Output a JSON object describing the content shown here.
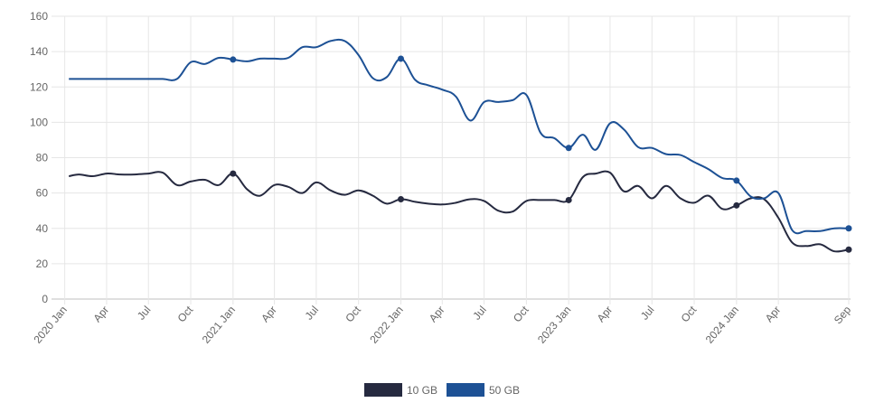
{
  "chart_data": {
    "type": "line",
    "title": "",
    "xlabel": "",
    "ylabel": "",
    "ylim": [
      0,
      160
    ],
    "yticks": [
      0,
      20,
      40,
      60,
      80,
      100,
      120,
      140,
      160
    ],
    "xlim": [
      "2019-12-15",
      "2024-09-05"
    ],
    "grid": true,
    "legend_position": "bottom",
    "x_ticks": [
      {
        "date": "2020-01-01",
        "label": "2020 Jan"
      },
      {
        "date": "2020-04-01",
        "label": "Apr"
      },
      {
        "date": "2020-07-01",
        "label": "Jul"
      },
      {
        "date": "2020-10-01",
        "label": "Oct"
      },
      {
        "date": "2021-01-01",
        "label": "2021 Jan"
      },
      {
        "date": "2021-04-01",
        "label": "Apr"
      },
      {
        "date": "2021-07-01",
        "label": "Jul"
      },
      {
        "date": "2021-10-01",
        "label": "Oct"
      },
      {
        "date": "2022-01-01",
        "label": "2022 Jan"
      },
      {
        "date": "2022-04-01",
        "label": "Apr"
      },
      {
        "date": "2022-07-01",
        "label": "Jul"
      },
      {
        "date": "2022-10-01",
        "label": "Oct"
      },
      {
        "date": "2023-01-01",
        "label": "2023 Jan"
      },
      {
        "date": "2023-04-01",
        "label": "Apr"
      },
      {
        "date": "2023-07-01",
        "label": "Jul"
      },
      {
        "date": "2023-10-01",
        "label": "Oct"
      },
      {
        "date": "2024-01-01",
        "label": "2024 Jan"
      },
      {
        "date": "2024-04-01",
        "label": "Apr"
      },
      {
        "date": "2024-09-01",
        "label": "Sep"
      }
    ],
    "series": [
      {
        "name": "10 GB",
        "color": "#262a40",
        "points": [
          [
            "2020-01-10",
            69.5
          ],
          [
            "2020-02-01",
            70.5
          ],
          [
            "2020-03-01",
            69.5
          ],
          [
            "2020-04-01",
            71
          ],
          [
            "2020-05-01",
            70.5
          ],
          [
            "2020-06-01",
            70.5
          ],
          [
            "2020-07-01",
            71
          ],
          [
            "2020-08-01",
            71.5
          ],
          [
            "2020-09-01",
            64.5
          ],
          [
            "2020-10-01",
            66.5
          ],
          [
            "2020-11-01",
            67.5
          ],
          [
            "2020-12-01",
            64.5
          ],
          [
            "2021-01-01",
            71
          ],
          [
            "2021-02-01",
            62
          ],
          [
            "2021-03-01",
            58.5
          ],
          [
            "2021-04-01",
            64.5
          ],
          [
            "2021-05-01",
            63.5
          ],
          [
            "2021-06-01",
            60
          ],
          [
            "2021-07-01",
            66
          ],
          [
            "2021-08-01",
            61.5
          ],
          [
            "2021-09-01",
            59
          ],
          [
            "2021-10-01",
            61.5
          ],
          [
            "2021-11-01",
            58.5
          ],
          [
            "2021-12-01",
            54
          ],
          [
            "2022-01-01",
            56.5
          ],
          [
            "2022-02-01",
            55
          ],
          [
            "2022-03-01",
            54
          ],
          [
            "2022-04-01",
            53.5
          ],
          [
            "2022-05-01",
            54.5
          ],
          [
            "2022-06-01",
            56.5
          ],
          [
            "2022-07-01",
            55.5
          ],
          [
            "2022-08-01",
            50
          ],
          [
            "2022-09-01",
            49.5
          ],
          [
            "2022-10-01",
            55.5
          ],
          [
            "2022-11-01",
            56
          ],
          [
            "2022-12-01",
            56
          ],
          [
            "2023-01-01",
            56
          ],
          [
            "2023-02-01",
            69
          ],
          [
            "2023-03-01",
            71
          ],
          [
            "2023-04-01",
            71.5
          ],
          [
            "2023-05-01",
            61
          ],
          [
            "2023-06-01",
            64
          ],
          [
            "2023-07-01",
            57
          ],
          [
            "2023-08-01",
            64
          ],
          [
            "2023-09-01",
            57
          ],
          [
            "2023-10-01",
            54.5
          ],
          [
            "2023-11-01",
            58.5
          ],
          [
            "2023-12-01",
            51
          ],
          [
            "2024-01-01",
            53
          ],
          [
            "2024-02-01",
            57
          ],
          [
            "2024-03-01",
            56.5
          ],
          [
            "2024-04-01",
            46
          ],
          [
            "2024-05-01",
            32
          ],
          [
            "2024-06-01",
            30
          ],
          [
            "2024-07-01",
            31
          ],
          [
            "2024-08-01",
            27
          ],
          [
            "2024-09-01",
            28
          ]
        ],
        "markers": [
          [
            "2021-01-01",
            71
          ],
          [
            "2022-01-01",
            56.5
          ],
          [
            "2023-01-01",
            56
          ],
          [
            "2024-01-01",
            53
          ],
          [
            "2024-09-01",
            28
          ]
        ]
      },
      {
        "name": "50 GB",
        "color": "#1d5195",
        "points": [
          [
            "2020-01-10",
            124.5
          ],
          [
            "2020-02-01",
            124.5
          ],
          [
            "2020-03-01",
            124.5
          ],
          [
            "2020-04-01",
            124.5
          ],
          [
            "2020-05-01",
            124.5
          ],
          [
            "2020-06-01",
            124.5
          ],
          [
            "2020-07-01",
            124.5
          ],
          [
            "2020-08-01",
            124.5
          ],
          [
            "2020-09-01",
            124.5
          ],
          [
            "2020-10-01",
            134
          ],
          [
            "2020-11-01",
            133
          ],
          [
            "2020-12-01",
            136.5
          ],
          [
            "2021-01-01",
            135.5
          ],
          [
            "2021-02-01",
            134.5
          ],
          [
            "2021-03-01",
            136
          ],
          [
            "2021-04-01",
            136
          ],
          [
            "2021-05-01",
            136.5
          ],
          [
            "2021-06-01",
            142.5
          ],
          [
            "2021-07-01",
            142.5
          ],
          [
            "2021-08-01",
            146
          ],
          [
            "2021-09-01",
            146
          ],
          [
            "2021-10-01",
            138
          ],
          [
            "2021-11-01",
            125
          ],
          [
            "2021-12-01",
            125.5
          ],
          [
            "2022-01-01",
            136
          ],
          [
            "2022-02-01",
            124
          ],
          [
            "2022-03-01",
            121
          ],
          [
            "2022-04-01",
            118.5
          ],
          [
            "2022-05-01",
            114.5
          ],
          [
            "2022-06-01",
            101
          ],
          [
            "2022-07-01",
            111.5
          ],
          [
            "2022-08-01",
            111.5
          ],
          [
            "2022-09-01",
            112.5
          ],
          [
            "2022-10-01",
            115.5
          ],
          [
            "2022-11-01",
            94
          ],
          [
            "2022-12-01",
            91
          ],
          [
            "2023-01-01",
            85.5
          ],
          [
            "2023-02-01",
            93
          ],
          [
            "2023-03-01",
            84.5
          ],
          [
            "2023-04-01",
            99.5
          ],
          [
            "2023-05-01",
            96
          ],
          [
            "2023-06-01",
            86
          ],
          [
            "2023-07-01",
            85.5
          ],
          [
            "2023-08-01",
            82
          ],
          [
            "2023-09-01",
            81.5
          ],
          [
            "2023-10-01",
            77.5
          ],
          [
            "2023-11-01",
            73.5
          ],
          [
            "2023-12-01",
            68.5
          ],
          [
            "2024-01-01",
            67
          ],
          [
            "2024-02-01",
            58
          ],
          [
            "2024-03-01",
            57
          ],
          [
            "2024-04-01",
            60
          ],
          [
            "2024-05-01",
            39
          ],
          [
            "2024-06-01",
            38.5
          ],
          [
            "2024-07-01",
            38.5
          ],
          [
            "2024-08-01",
            40
          ],
          [
            "2024-09-01",
            40
          ]
        ],
        "markers": [
          [
            "2021-01-01",
            135.5
          ],
          [
            "2022-01-01",
            136
          ],
          [
            "2023-01-01",
            85.5
          ],
          [
            "2024-01-01",
            67
          ],
          [
            "2024-09-01",
            40
          ]
        ]
      }
    ]
  }
}
